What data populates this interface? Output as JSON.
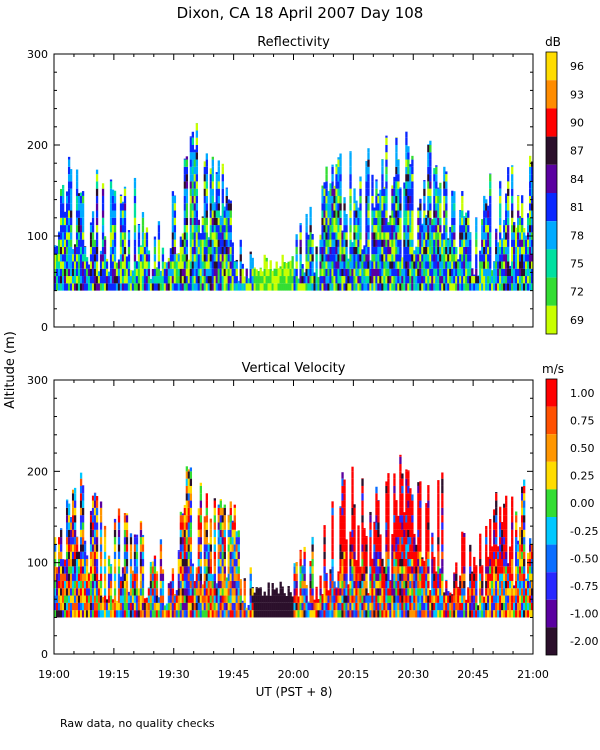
{
  "figure": {
    "title": "Dixon, CA 18 April 2007  Day 108",
    "ylabel": "Altitude (m)",
    "xlabel": "UT  (PST + 8)",
    "footnote": "Raw data, no quality checks"
  },
  "chart_data": [
    {
      "type": "heatmap",
      "title": "Reflectivity",
      "quantity": "reflectivity",
      "x_range": [
        "19:00",
        "21:00"
      ],
      "x_ticks": [
        "19:00",
        "19:15",
        "19:30",
        "19:45",
        "20:00",
        "20:15",
        "20:30",
        "20:45",
        "21:00"
      ],
      "ylim": [
        0,
        300
      ],
      "y_ticks": [
        "0",
        "100",
        "200",
        "300"
      ],
      "colorbar": {
        "unit": "dB",
        "labels": [
          "96",
          "93",
          "90",
          "87",
          "84",
          "81",
          "78",
          "75",
          "72",
          "69"
        ],
        "colors": [
          "#ffdc00",
          "#ff8c00",
          "#ff0000",
          "#2b0f2b",
          "#5a00a0",
          "#0a28ff",
          "#00aaff",
          "#00e0a0",
          "#33dd33",
          "#c8ff00"
        ]
      },
      "echo_base_m": 40,
      "echo_gap": {
        "start": "19:50",
        "end": "20:00"
      },
      "echo_top_profile_m": [
        {
          "time": "19:00",
          "top": 130
        },
        {
          "time": "19:05",
          "top": 200
        },
        {
          "time": "19:10",
          "top": 180
        },
        {
          "time": "19:15",
          "top": 160
        },
        {
          "time": "19:20",
          "top": 160
        },
        {
          "time": "19:25",
          "top": 100
        },
        {
          "time": "19:30",
          "top": 160
        },
        {
          "time": "19:35",
          "top": 220
        },
        {
          "time": "19:40",
          "top": 180
        },
        {
          "time": "19:45",
          "top": 160
        },
        {
          "time": "19:50",
          "top": 80
        },
        {
          "time": "19:55",
          "top": 75
        },
        {
          "time": "20:00",
          "top": 100
        },
        {
          "time": "20:05",
          "top": 140
        },
        {
          "time": "20:10",
          "top": 200
        },
        {
          "time": "20:15",
          "top": 210
        },
        {
          "time": "20:20",
          "top": 180
        },
        {
          "time": "20:25",
          "top": 220
        },
        {
          "time": "20:30",
          "top": 200
        },
        {
          "time": "20:35",
          "top": 200
        },
        {
          "time": "20:40",
          "top": 180
        },
        {
          "time": "20:45",
          "top": 110
        },
        {
          "time": "20:50",
          "top": 170
        },
        {
          "time": "20:55",
          "top": 180
        },
        {
          "time": "21:00",
          "top": 220
        }
      ]
    },
    {
      "type": "heatmap",
      "title": "Vertical Velocity",
      "quantity": "vertical velocity",
      "x_range": [
        "19:00",
        "21:00"
      ],
      "x_ticks": [
        "19:00",
        "19:15",
        "19:30",
        "19:45",
        "20:00",
        "20:15",
        "20:30",
        "20:45",
        "21:00"
      ],
      "ylim": [
        0,
        300
      ],
      "y_ticks": [
        "0",
        "100",
        "200",
        "300"
      ],
      "colorbar": {
        "unit": "m/s",
        "labels": [
          "1.00",
          "0.75",
          "0.50",
          "0.25",
          "0.00",
          "-0.25",
          "-0.50",
          "-0.75",
          "-1.00",
          "-2.00"
        ],
        "colors": [
          "#ff0000",
          "#ff5000",
          "#ff9600",
          "#ffdc00",
          "#33dd33",
          "#00c8ff",
          "#0a6eff",
          "#2828ff",
          "#5a00a0",
          "#2b0f2b"
        ]
      },
      "echo_base_m": 40,
      "echo_gap": {
        "start": "19:50",
        "end": "20:00"
      },
      "echo_top_profile_m": [
        {
          "time": "19:00",
          "top": 130
        },
        {
          "time": "19:05",
          "top": 200
        },
        {
          "time": "19:10",
          "top": 180
        },
        {
          "time": "19:15",
          "top": 160
        },
        {
          "time": "19:20",
          "top": 160
        },
        {
          "time": "19:25",
          "top": 100
        },
        {
          "time": "19:30",
          "top": 160
        },
        {
          "time": "19:35",
          "top": 220
        },
        {
          "time": "19:40",
          "top": 180
        },
        {
          "time": "19:45",
          "top": 160
        },
        {
          "time": "19:50",
          "top": 80
        },
        {
          "time": "19:55",
          "top": 75
        },
        {
          "time": "20:00",
          "top": 100
        },
        {
          "time": "20:05",
          "top": 140
        },
        {
          "time": "20:10",
          "top": 200
        },
        {
          "time": "20:15",
          "top": 210
        },
        {
          "time": "20:20",
          "top": 180
        },
        {
          "time": "20:25",
          "top": 220
        },
        {
          "time": "20:30",
          "top": 200
        },
        {
          "time": "20:35",
          "top": 200
        },
        {
          "time": "20:40",
          "top": 180
        },
        {
          "time": "20:45",
          "top": 110
        },
        {
          "time": "20:50",
          "top": 170
        },
        {
          "time": "20:55",
          "top": 180
        },
        {
          "time": "21:00",
          "top": 220
        }
      ]
    }
  ]
}
